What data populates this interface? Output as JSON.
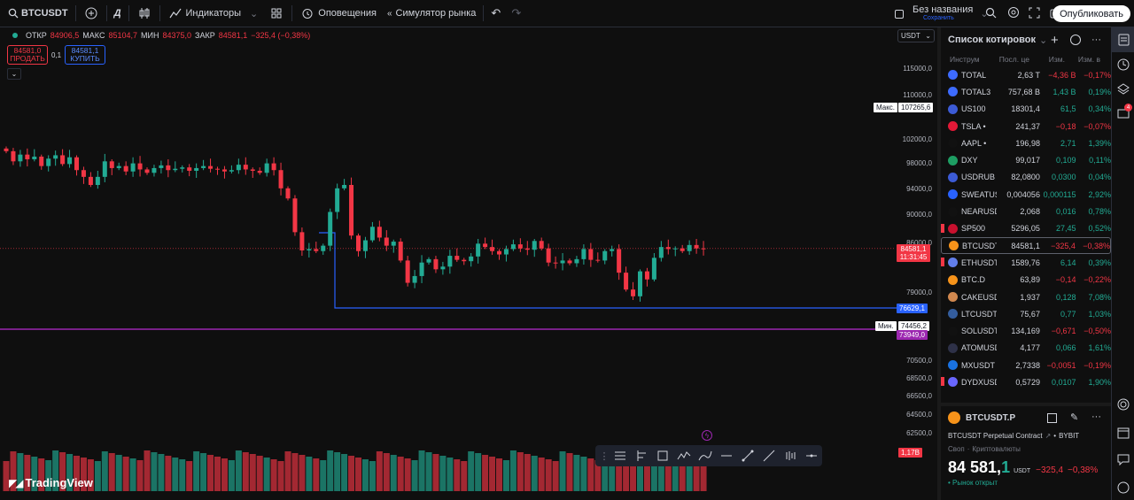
{
  "topbar": {
    "symbol": "BTCUSDT",
    "interval": "Д",
    "indicators": "Индикаторы",
    "alerts": "Оповещения",
    "replay": "Симулятор рынка",
    "layout_name": "Без названия",
    "layout_status": "Сохранить",
    "publish": "Опубликовать"
  },
  "legend": {
    "open_label": "ОТКР",
    "open": "84906,5",
    "high_label": "МАКС",
    "high": "85104,7",
    "low_label": "МИН",
    "low": "84375,0",
    "close_label": "ЗАКР",
    "close": "84581,1",
    "change": "−325,4 (−0,38%)"
  },
  "trade": {
    "sell_price": "84581,0",
    "sell_label": "ПРОДАТЬ",
    "spread": "0,1",
    "buy_price": "84581,1",
    "buy_label": "КУПИТЬ"
  },
  "currency_select": "USDT",
  "price_axis": [
    "115000,0",
    "110000,0",
    "102000,0",
    "98000,0",
    "94000,0",
    "90000,0",
    "86000,0",
    "79000,0",
    "70500,0",
    "68500,0",
    "66500,0",
    "64500,0",
    "62500,0"
  ],
  "tags": {
    "max_label": "Макс.",
    "max_value": "107265,6",
    "last_price": "84581,1",
    "countdown": "11:31:45",
    "line_value": "76629,1",
    "min_label": "Мин.",
    "min_value": "74456,2",
    "purple_value": "73949,0",
    "volume": "1,17B"
  },
  "brand": "TradingView",
  "chart_data": {
    "type": "candlestick",
    "symbol": "BTCUSDT",
    "interval": "1D",
    "last": 84581.1,
    "high": 107265.6,
    "low": 74456.2,
    "closes": [
      99000,
      97500,
      98500,
      97800,
      98200,
      96800,
      97900,
      98400,
      97100,
      98100,
      96200,
      95200,
      94000,
      95200,
      97500,
      96500,
      96800,
      96000,
      97200,
      96300,
      95800,
      96500,
      96900,
      96200,
      96400,
      96600,
      96100,
      96500,
      96800,
      96400,
      96300,
      96000,
      96200,
      97000,
      96300,
      96100,
      95800,
      97200,
      96200,
      93500,
      92000,
      87000,
      84300,
      84500,
      84200,
      85000,
      90000,
      93500,
      94000,
      86500,
      84200,
      85800,
      87800,
      86200,
      85000,
      85600,
      82800,
      79500,
      80500,
      82500,
      83000,
      81500,
      81900,
      83500,
      82900,
      82700,
      83400,
      85300,
      84800,
      84200,
      83700,
      84500,
      85200,
      84600,
      84400,
      85700,
      84600,
      82500,
      82400,
      82800,
      82400,
      83000,
      84500,
      82900,
      82800,
      84200,
      84500,
      81000,
      78500,
      77500,
      81200,
      80000,
      83200,
      84800,
      84500,
      84600,
      84200,
      85100,
      84600,
      84581
    ]
  },
  "watchlist": {
    "title": "Список котировок",
    "columns": [
      "Инструм",
      "Посл. це",
      "Изм.",
      "Изм. в"
    ],
    "rows": [
      {
        "sym": "TOTAL",
        "last": "2,63 T",
        "chg": "−4,36 B",
        "pct": "−0,17%",
        "dir": "neg",
        "icon": "#3d6bff",
        "flag": false,
        "active": false
      },
      {
        "sym": "TOTAL3",
        "last": "757,68 B",
        "chg": "1,43 B",
        "pct": "0,19%",
        "dir": "pos",
        "icon": "#3d6bff",
        "flag": false,
        "active": false
      },
      {
        "sym": "US100",
        "last": "18301,4",
        "chg": "61,5",
        "pct": "0,34%",
        "dir": "pos",
        "icon": "#3c5bd6",
        "flag": false,
        "active": false
      },
      {
        "sym": "TSLA •",
        "last": "241,37",
        "chg": "−0,18",
        "pct": "−0,07%",
        "dir": "neg",
        "icon": "#e31937",
        "flag": false,
        "active": false
      },
      {
        "sym": "AAPL •",
        "last": "196,98",
        "chg": "2,71",
        "pct": "1,39%",
        "dir": "pos",
        "icon": "#111111",
        "flag": false,
        "active": false
      },
      {
        "sym": "DXY",
        "last": "99,017",
        "chg": "0,109",
        "pct": "0,11%",
        "dir": "pos",
        "icon": "#1e9e63",
        "flag": false,
        "active": false
      },
      {
        "sym": "USDRUB",
        "last": "82,0800",
        "chg": "0,0300",
        "pct": "0,04%",
        "dir": "pos",
        "icon": "#3c5bd6",
        "flag": false,
        "active": false
      },
      {
        "sym": "SWEATUSDT",
        "last": "0,004056",
        "chg": "0,000115",
        "pct": "2,92%",
        "dir": "pos",
        "icon": "#2962ff",
        "flag": false,
        "active": false
      },
      {
        "sym": "NEARUSDT",
        "last": "2,068",
        "chg": "0,016",
        "pct": "0,78%",
        "dir": "pos",
        "icon": "#111111",
        "flag": false,
        "active": false
      },
      {
        "sym": "SP500",
        "last": "5296,05",
        "chg": "27,45",
        "pct": "0,52%",
        "dir": "pos",
        "icon": "#c8102e",
        "flag": true,
        "active": false
      },
      {
        "sym": "BTCUSDT",
        "last": "84581,1",
        "chg": "−325,4",
        "pct": "−0,38%",
        "dir": "neg",
        "icon": "#f7931a",
        "flag": false,
        "active": true
      },
      {
        "sym": "ETHUSDT",
        "last": "1589,76",
        "chg": "6,14",
        "pct": "0,39%",
        "dir": "pos",
        "icon": "#627eea",
        "flag": true,
        "active": false
      },
      {
        "sym": "BTC.D",
        "last": "63,89",
        "chg": "−0,14",
        "pct": "−0,22%",
        "dir": "neg",
        "icon": "#f7931a",
        "flag": false,
        "active": false
      },
      {
        "sym": "CAKEUSDT",
        "last": "1,937",
        "chg": "0,128",
        "pct": "7,08%",
        "dir": "pos",
        "icon": "#d1884f",
        "flag": false,
        "active": false
      },
      {
        "sym": "LTCUSDT",
        "last": "75,67",
        "chg": "0,77",
        "pct": "1,03%",
        "dir": "pos",
        "icon": "#345d9d",
        "flag": false,
        "active": false
      },
      {
        "sym": "SOLUSDT",
        "last": "134,169",
        "chg": "−0,671",
        "pct": "−0,50%",
        "dir": "neg",
        "icon": "#111111",
        "flag": false,
        "active": false
      },
      {
        "sym": "ATOMUSDT",
        "last": "4,177",
        "chg": "0,066",
        "pct": "1,61%",
        "dir": "pos",
        "icon": "#2e3148",
        "flag": false,
        "active": false
      },
      {
        "sym": "MXUSDT",
        "last": "2,7338",
        "chg": "−0,0051",
        "pct": "−0,19%",
        "dir": "neg",
        "icon": "#1972e2",
        "flag": false,
        "active": false
      },
      {
        "sym": "DYDXUSDT",
        "last": "0,5729",
        "chg": "0,0107",
        "pct": "1,90%",
        "dir": "pos",
        "icon": "#6966ff",
        "flag": true,
        "active": false
      }
    ]
  },
  "details": {
    "symbol": "BTCUSDT.P",
    "name": "BTCUSDT Perpetual Contract",
    "exchange": "BYBIT",
    "type": "Своп",
    "category": "Криптовалюты",
    "price_main": "84 581,",
    "price_dec": "1",
    "currency": "USDT",
    "change": "−325,4",
    "change_pct": "−0,38%",
    "market": "Рынок открыт"
  },
  "colors": {
    "up": "#22ab94",
    "down": "#f23645",
    "blue": "#2962ff",
    "purple": "#9c27b0"
  },
  "rail_badge": "4"
}
